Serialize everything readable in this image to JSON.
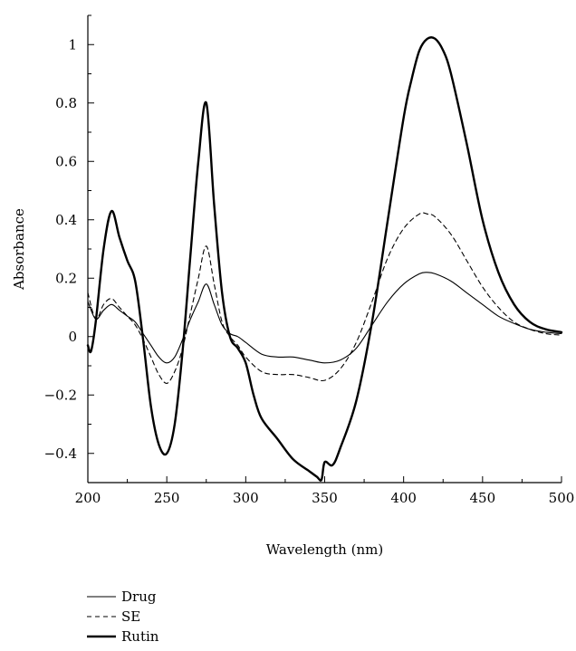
{
  "chart_data": {
    "type": "line",
    "title": "",
    "xlabel": "Wavelength (nm)",
    "ylabel": "Absorbance",
    "xlim": [
      200,
      500
    ],
    "ylim": [
      -0.5,
      1.1
    ],
    "x_ticks": [
      200,
      250,
      300,
      350,
      400,
      450,
      500
    ],
    "x_tick_labels": [
      "200",
      "250",
      "300",
      "350",
      "400",
      "450",
      "500"
    ],
    "y_ticks": [
      -0.4,
      -0.2,
      0,
      0.2,
      0.4,
      0.6,
      0.8,
      1
    ],
    "y_tick_labels": [
      "−0.4",
      "−0.2",
      "0",
      "0.2",
      "0.4",
      "0.6",
      "0.8",
      "1"
    ],
    "grid": false,
    "legend_position": "bottom-left",
    "series": [
      {
        "name": "Drug",
        "style": "thin-solid",
        "color": "#000000",
        "x": [
          200,
          205,
          210,
          215,
          220,
          225,
          230,
          235,
          240,
          245,
          250,
          255,
          260,
          265,
          270,
          275,
          280,
          285,
          290,
          295,
          300,
          310,
          320,
          330,
          340,
          350,
          360,
          370,
          380,
          390,
          400,
          410,
          415,
          420,
          430,
          440,
          450,
          460,
          470,
          480,
          490,
          500
        ],
        "y": [
          0.12,
          0.06,
          0.09,
          0.11,
          0.09,
          0.07,
          0.05,
          0.01,
          -0.03,
          -0.07,
          -0.09,
          -0.07,
          -0.01,
          0.06,
          0.12,
          0.18,
          0.11,
          0.04,
          0.01,
          0.0,
          -0.02,
          -0.06,
          -0.07,
          -0.07,
          -0.08,
          -0.09,
          -0.08,
          -0.04,
          0.04,
          0.12,
          0.18,
          0.215,
          0.22,
          0.215,
          0.19,
          0.15,
          0.11,
          0.07,
          0.045,
          0.025,
          0.015,
          0.01
        ]
      },
      {
        "name": "SE",
        "style": "dashed",
        "color": "#000000",
        "x": [
          200,
          205,
          210,
          215,
          220,
          225,
          230,
          235,
          240,
          245,
          250,
          255,
          260,
          265,
          270,
          275,
          280,
          285,
          290,
          295,
          300,
          310,
          320,
          330,
          340,
          350,
          360,
          370,
          380,
          390,
          400,
          410,
          415,
          420,
          430,
          440,
          450,
          460,
          470,
          480,
          490,
          500
        ],
        "y": [
          0.15,
          0.06,
          0.11,
          0.13,
          0.1,
          0.07,
          0.04,
          -0.01,
          -0.07,
          -0.13,
          -0.16,
          -0.12,
          -0.04,
          0.08,
          0.2,
          0.31,
          0.18,
          0.05,
          0.0,
          -0.03,
          -0.07,
          -0.12,
          -0.13,
          -0.13,
          -0.14,
          -0.15,
          -0.11,
          -0.02,
          0.12,
          0.27,
          0.37,
          0.42,
          0.42,
          0.41,
          0.35,
          0.26,
          0.17,
          0.1,
          0.05,
          0.025,
          0.01,
          0.005
        ]
      },
      {
        "name": "Rutin",
        "style": "thick-solid",
        "color": "#000000",
        "x": [
          200,
          202,
          205,
          210,
          215,
          220,
          225,
          230,
          235,
          240,
          245,
          250,
          255,
          260,
          265,
          270,
          275,
          280,
          285,
          290,
          295,
          300,
          305,
          310,
          320,
          330,
          340,
          345,
          348,
          350,
          355,
          360,
          370,
          380,
          390,
          400,
          405,
          410,
          415,
          420,
          425,
          430,
          440,
          450,
          460,
          470,
          480,
          490,
          500
        ],
        "y": [
          -0.03,
          -0.05,
          0.05,
          0.3,
          0.43,
          0.34,
          0.26,
          0.19,
          -0.01,
          -0.24,
          -0.37,
          -0.4,
          -0.3,
          -0.05,
          0.28,
          0.6,
          0.8,
          0.45,
          0.15,
          0.0,
          -0.04,
          -0.09,
          -0.2,
          -0.28,
          -0.35,
          -0.42,
          -0.46,
          -0.48,
          -0.49,
          -0.43,
          -0.44,
          -0.38,
          -0.22,
          0.05,
          0.4,
          0.75,
          0.88,
          0.98,
          1.02,
          1.02,
          0.98,
          0.9,
          0.66,
          0.4,
          0.22,
          0.11,
          0.05,
          0.025,
          0.015
        ]
      }
    ]
  }
}
